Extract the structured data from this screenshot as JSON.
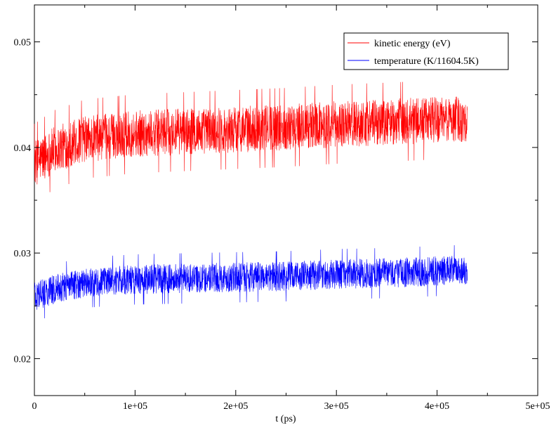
{
  "chart_data": {
    "type": "line",
    "title": "",
    "xlabel": "t (ps)",
    "ylabel": "",
    "xlim": [
      0,
      500000
    ],
    "ylim": [
      0.0165,
      0.0535
    ],
    "grid": false,
    "legend_position": "top-right",
    "x_ticks": [
      {
        "value": 0,
        "label": "0"
      },
      {
        "value": 100000,
        "label": "1e+05"
      },
      {
        "value": 200000,
        "label": "2e+05"
      },
      {
        "value": 300000,
        "label": "3e+05"
      },
      {
        "value": 400000,
        "label": "4e+05"
      },
      {
        "value": 500000,
        "label": "5e+05"
      }
    ],
    "x_minor_ticks": [
      50000,
      150000,
      250000,
      350000,
      450000
    ],
    "y_ticks": [
      {
        "value": 0.02,
        "label": "0.02"
      },
      {
        "value": 0.03,
        "label": "0.03"
      },
      {
        "value": 0.04,
        "label": "0.04"
      },
      {
        "value": 0.05,
        "label": "0.05"
      }
    ],
    "y_minor_ticks": [
      0.025,
      0.035,
      0.045
    ],
    "series": [
      {
        "name": "kinetic energy (eV)",
        "color": "#ff0000",
        "x_range": [
          0,
          430000
        ],
        "mean": [
          [
            0,
            0.0385
          ],
          [
            20000,
            0.0398
          ],
          [
            50000,
            0.0408
          ],
          [
            100000,
            0.0413
          ],
          [
            150000,
            0.0415
          ],
          [
            200000,
            0.0417
          ],
          [
            250000,
            0.0419
          ],
          [
            300000,
            0.0422
          ],
          [
            350000,
            0.0424
          ],
          [
            400000,
            0.0426
          ],
          [
            430000,
            0.0427
          ]
        ],
        "band_half_width": 0.0022,
        "min": 0.0357,
        "max": 0.0466
      },
      {
        "name": "temperature (K/11604.5K)",
        "color": "#0000ff",
        "x_range": [
          0,
          430000
        ],
        "mean": [
          [
            0,
            0.0258
          ],
          [
            20000,
            0.0266
          ],
          [
            50000,
            0.0272
          ],
          [
            100000,
            0.0275
          ],
          [
            150000,
            0.0276
          ],
          [
            200000,
            0.0277
          ],
          [
            250000,
            0.0278
          ],
          [
            300000,
            0.028
          ],
          [
            350000,
            0.0281
          ],
          [
            400000,
            0.0283
          ],
          [
            430000,
            0.0284
          ]
        ],
        "band_half_width": 0.0014,
        "min": 0.0238,
        "max": 0.0311
      }
    ]
  }
}
